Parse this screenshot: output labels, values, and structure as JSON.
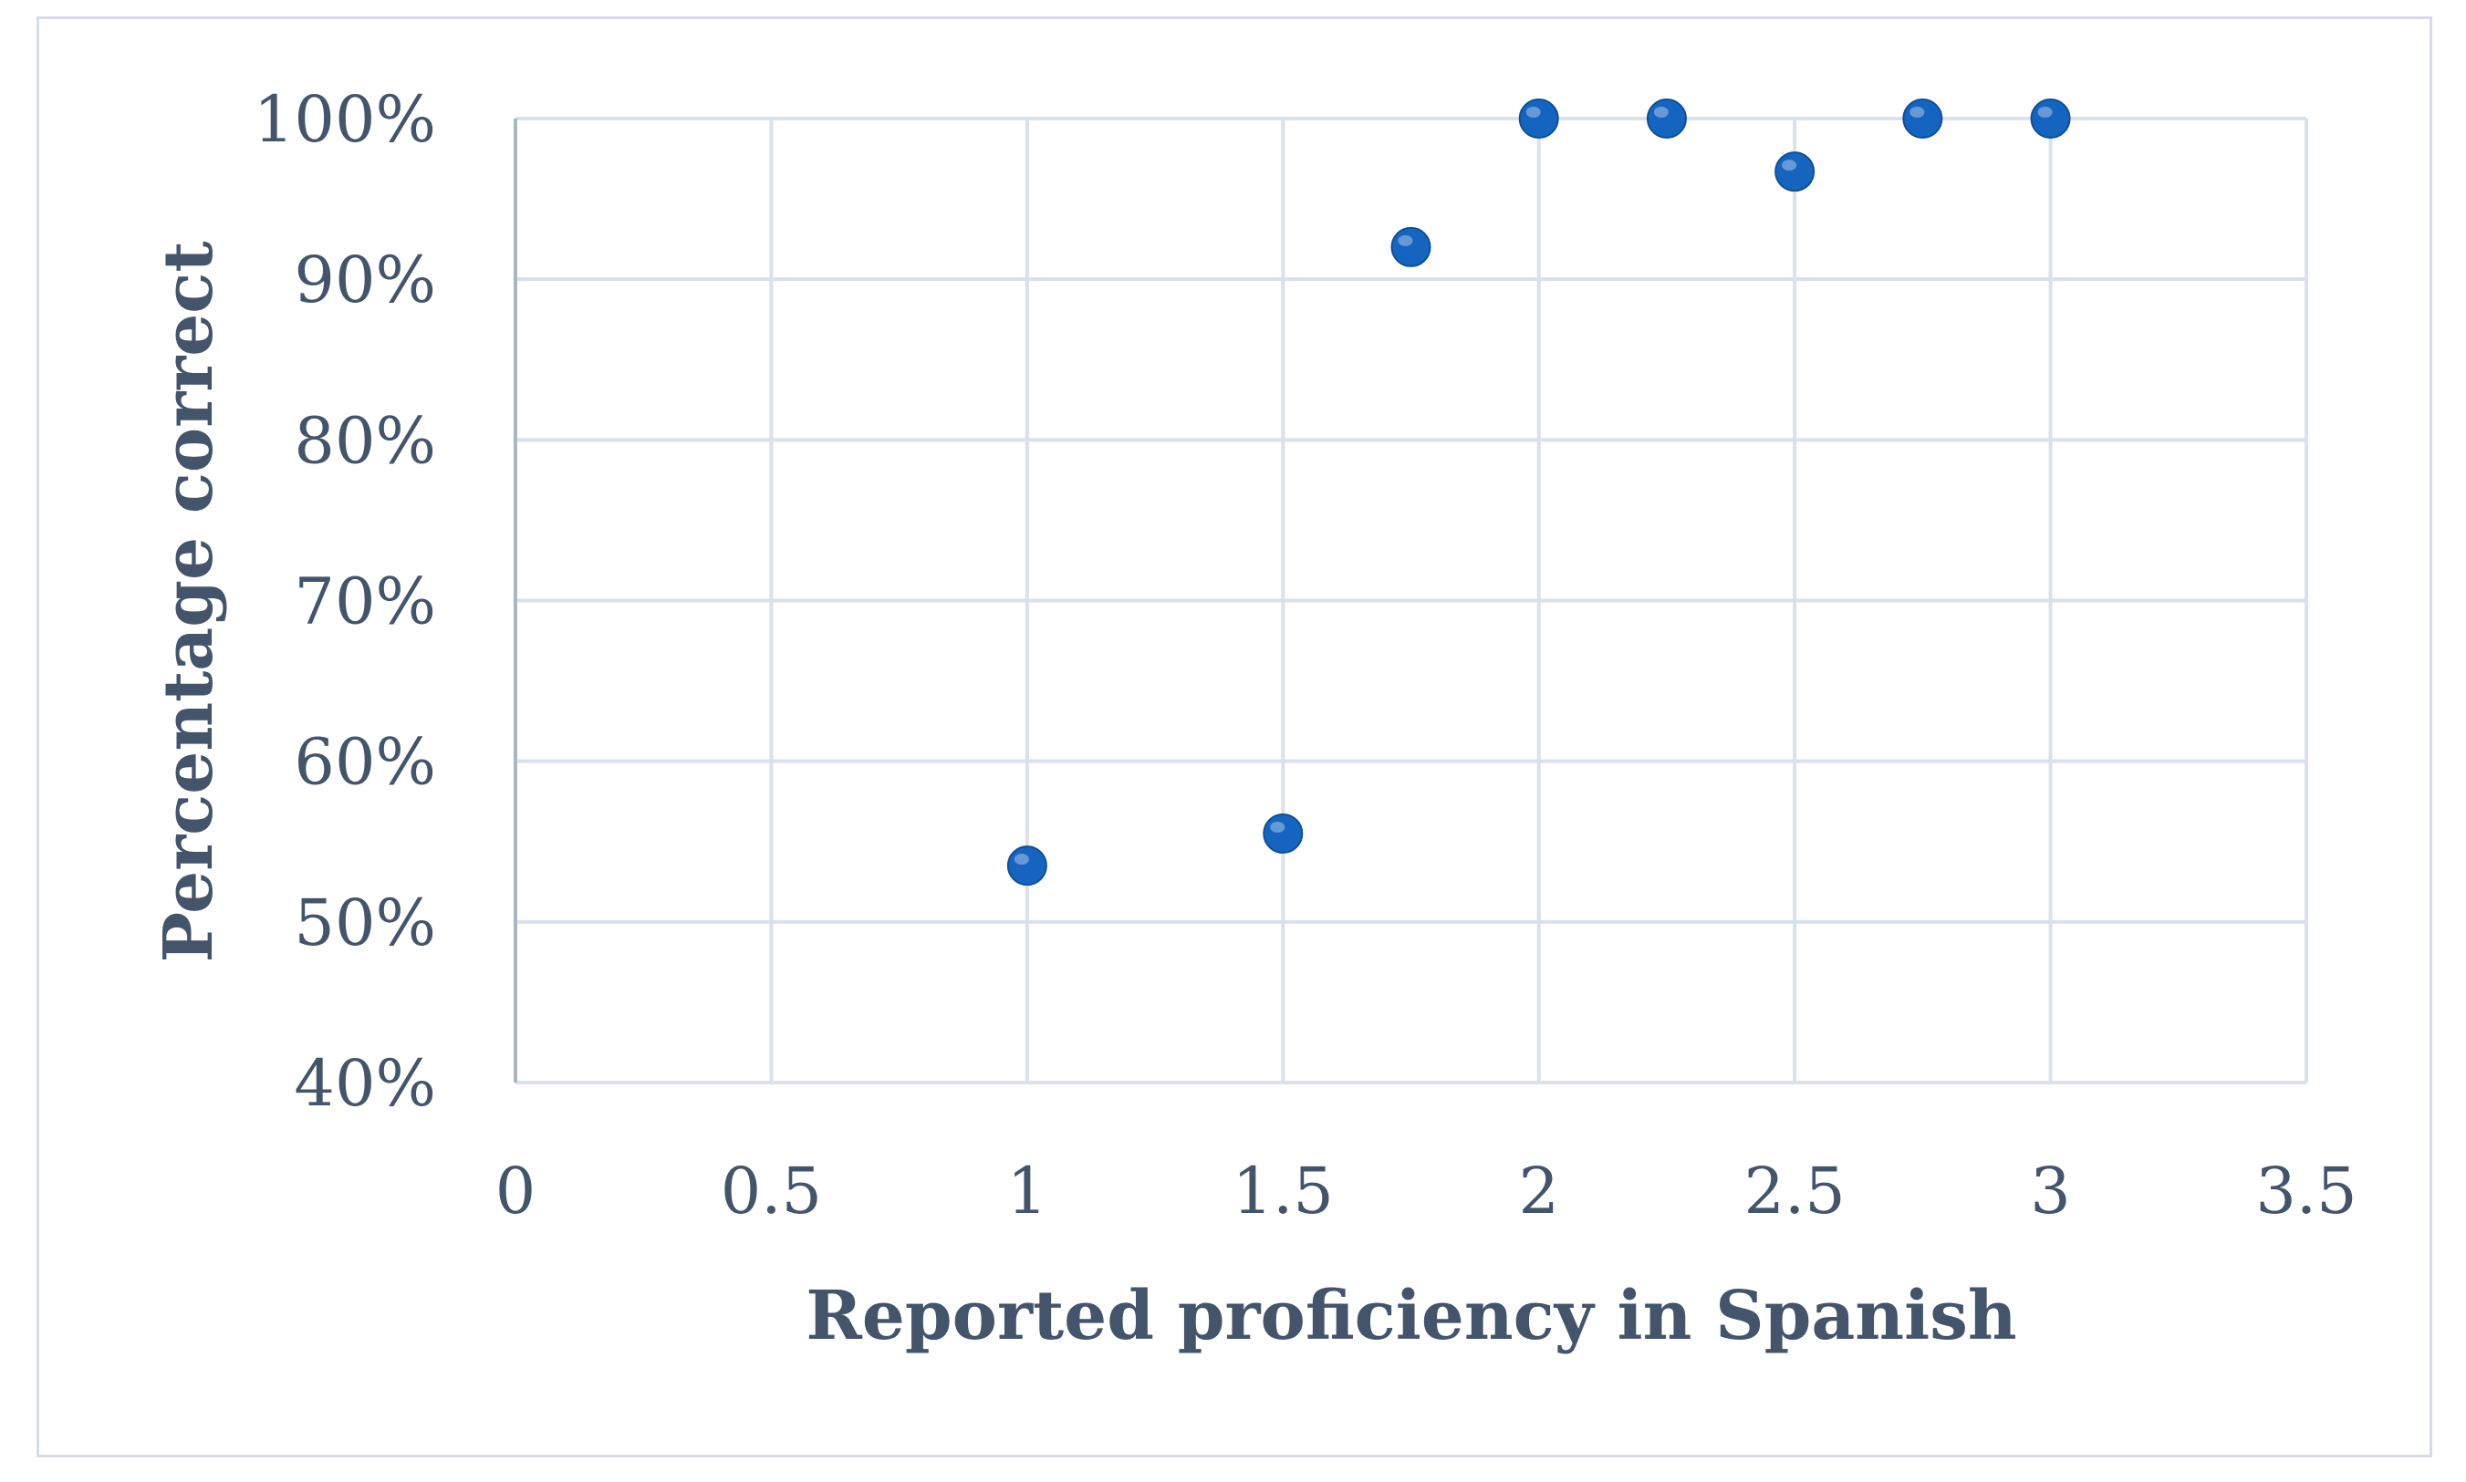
{
  "chart_data": {
    "type": "scatter",
    "title": "",
    "xlabel": "Reported proficiency in Spanish",
    "ylabel": "Percentage correct",
    "xlim": [
      0,
      3.5
    ],
    "ylim": [
      0.4,
      1.0
    ],
    "x_ticks": [
      "0",
      "0.5",
      "1",
      "1.5",
      "2",
      "2.5",
      "3",
      "3.5"
    ],
    "y_ticks": [
      "40%",
      "50%",
      "60%",
      "70%",
      "80%",
      "90%",
      "100%"
    ],
    "grid": true,
    "legend": "none",
    "marker_color": "#1565c0",
    "points": [
      {
        "x": 1.0,
        "y": 0.535
      },
      {
        "x": 1.5,
        "y": 0.555
      },
      {
        "x": 1.75,
        "y": 0.92
      },
      {
        "x": 2.0,
        "y": 1.0
      },
      {
        "x": 2.25,
        "y": 1.0
      },
      {
        "x": 2.5,
        "y": 0.967
      },
      {
        "x": 2.75,
        "y": 1.0
      },
      {
        "x": 3.0,
        "y": 1.0
      }
    ]
  }
}
